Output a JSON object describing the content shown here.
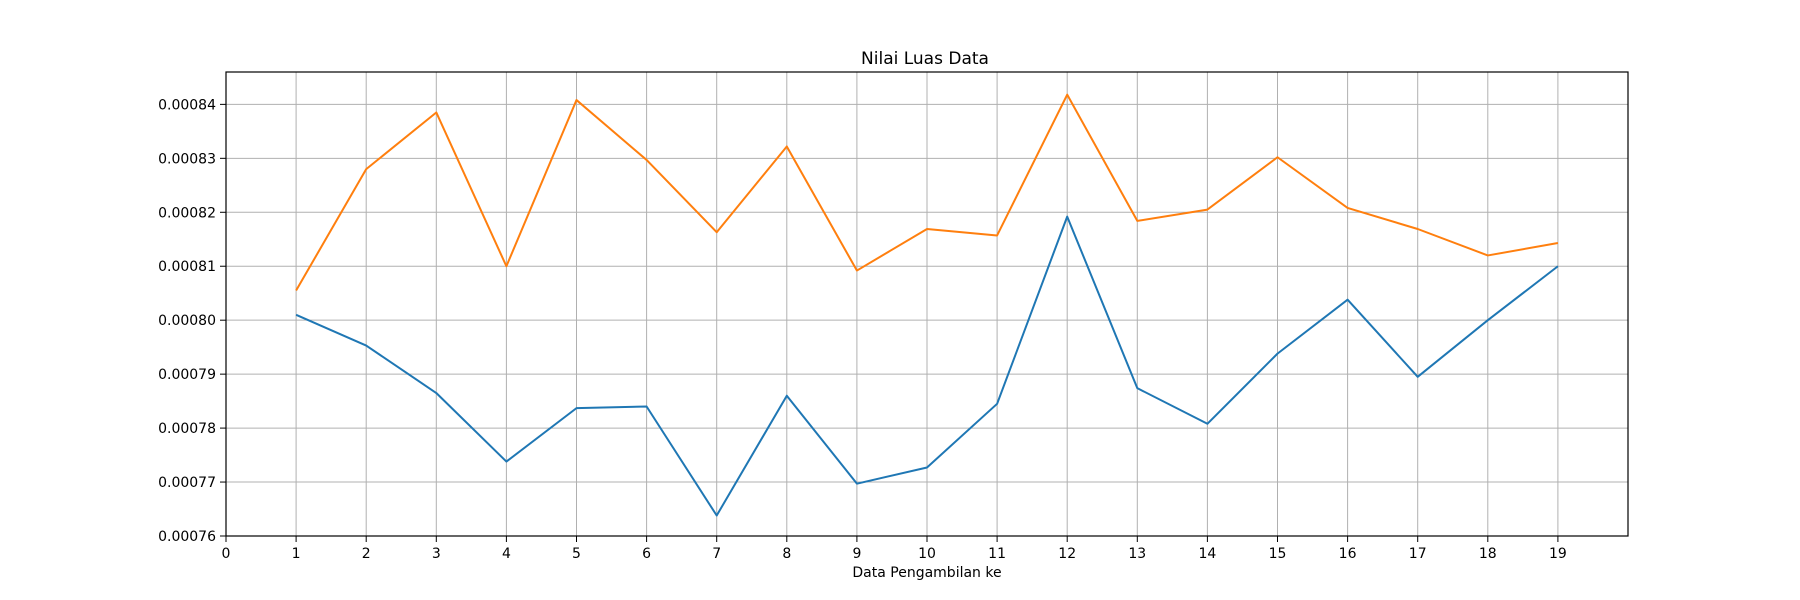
{
  "chart_data": {
    "type": "line",
    "title": "Nilai Luas Data",
    "xlabel": "Data Pengambilan ke",
    "ylabel": "",
    "x": [
      1,
      2,
      3,
      4,
      5,
      6,
      7,
      8,
      9,
      10,
      11,
      12,
      13,
      14,
      15,
      16,
      17,
      18,
      19
    ],
    "xlim": [
      0,
      20
    ],
    "xticks": [
      "0",
      "1",
      "2",
      "3",
      "4",
      "5",
      "6",
      "7",
      "8",
      "9",
      "10",
      "11",
      "12",
      "13",
      "14",
      "15",
      "16",
      "17",
      "18",
      "19"
    ],
    "ylim": [
      0.00076,
      0.000846
    ],
    "yticks": [
      "0.00076",
      "0.00077",
      "0.00078",
      "0.00079",
      "0.00080",
      "0.00081",
      "0.00082",
      "0.00083",
      "0.00084"
    ],
    "grid": true,
    "series": [
      {
        "color": "#1f77b4",
        "values": [
          0.000801,
          0.0007953,
          0.0007865,
          0.0007738,
          0.0007837,
          0.000784,
          0.0007638,
          0.000786,
          0.0007697,
          0.0007727,
          0.0007845,
          0.0008192,
          0.0007874,
          0.0007808,
          0.0007938,
          0.0008038,
          0.0007895,
          0.0008,
          0.00081
        ]
      },
      {
        "color": "#ff7f0e",
        "values": [
          0.0008055,
          0.000828,
          0.0008385,
          0.00081,
          0.0008408,
          0.0008297,
          0.0008163,
          0.0008322,
          0.0008092,
          0.0008169,
          0.0008157,
          0.0008418,
          0.0008184,
          0.0008205,
          0.0008302,
          0.0008208,
          0.0008169,
          0.000812,
          0.0008143
        ]
      }
    ]
  }
}
